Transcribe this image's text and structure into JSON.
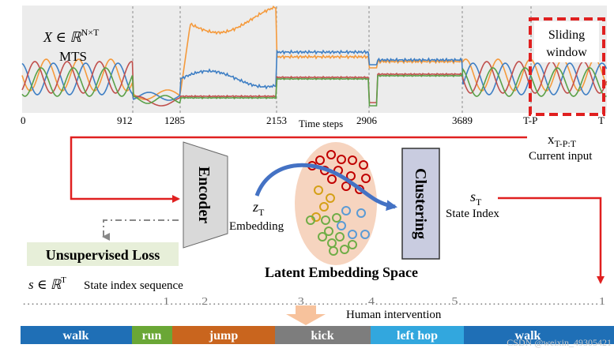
{
  "mts": {
    "formula_var": "X ∈ ℝ",
    "formula_sup": "N×T",
    "label": "MTS",
    "x_axis_label": "Time steps",
    "ticks": [
      "0",
      "912",
      "1285",
      "2153",
      "2906",
      "3689",
      "T-P",
      "T"
    ],
    "sliding_window_line1": "Sliding",
    "sliding_window_line2": "window"
  },
  "current_input": {
    "symbol": "x",
    "subscript": "T-P:T",
    "label": "Current input"
  },
  "encoder": {
    "label": "Encoder"
  },
  "embedding": {
    "symbol": "z",
    "subscript": "T",
    "label": "Embedding"
  },
  "latent": {
    "label": "Latent Embedding Space"
  },
  "clustering": {
    "label": "Clustering"
  },
  "state": {
    "symbol": "s",
    "subscript": "T",
    "label": "State Index"
  },
  "loss": {
    "label": "Unsupervised Loss"
  },
  "sequence": {
    "formula": "s ∈ ℝ",
    "formula_sup": "T",
    "label": "State index sequence",
    "dots": "……………………………1……..2…………………3……………4………………5……………………………1"
  },
  "intervention": {
    "label": "Human intervention"
  },
  "activities": [
    {
      "label": "walk",
      "color": "#1f6fb6"
    },
    {
      "label": "run",
      "color": "#6aa736"
    },
    {
      "label": "jump",
      "color": "#c9651e"
    },
    {
      "label": "kick",
      "color": "#7d7d7d"
    },
    {
      "label": "left hop",
      "color": "#32a7de"
    },
    {
      "label": "walk",
      "color": "#1f6fb6"
    }
  ],
  "watermark": "CSDN @weixin_49305421",
  "colors": {
    "red": "#e02020",
    "orange_series": "#f59a3c",
    "blue_series": "#3f7fc4",
    "red_series": "#c0504d",
    "green_series": "#5aa048",
    "encoder_fill": "#d9d9d9",
    "clustering_fill": "#c9cce0",
    "blob_fill": "#f6d4bf",
    "loss_fill": "#e7efd9"
  }
}
